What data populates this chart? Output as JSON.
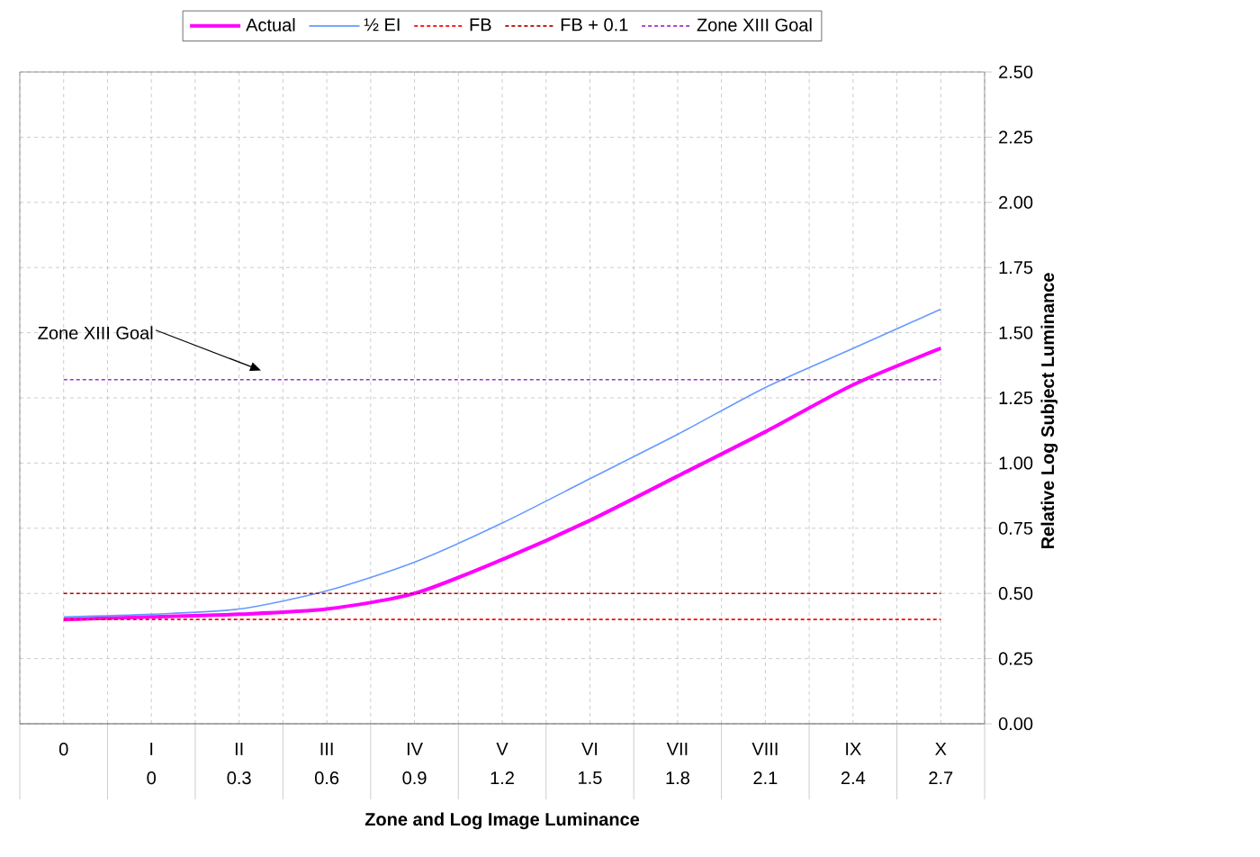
{
  "chart_data": {
    "type": "line",
    "xlabel": "Zone and Log Image Luminance",
    "ylabel": "Relative Log Subject Luminance",
    "categories": [
      "0",
      "I",
      "II",
      "III",
      "IV",
      "V",
      "VI",
      "VII",
      "VIII",
      "IX",
      "X"
    ],
    "x2lim": [
      -0.45,
      2.85
    ],
    "x2ticks": [
      0,
      0.3,
      0.6,
      0.9,
      1.2,
      1.5,
      1.8,
      2.1,
      2.4,
      2.7
    ],
    "series": [
      {
        "name": "Actual",
        "color": "#ff00ff",
        "values": [
          0.4,
          0.41,
          0.42,
          0.44,
          0.5,
          0.63,
          0.78,
          0.95,
          1.12,
          1.3,
          1.44
        ]
      },
      {
        "name": "½ EI",
        "color": "#6699ff",
        "values": [
          0.41,
          0.42,
          0.44,
          0.51,
          0.62,
          0.77,
          0.94,
          1.11,
          1.29,
          1.44,
          1.59
        ]
      }
    ],
    "ref_lines": [
      {
        "axis": "y",
        "value": 0.4,
        "label": "FB",
        "color": "#ff0000",
        "line_style": "dashed"
      },
      {
        "axis": "y",
        "value": 0.5,
        "label": "FB + 0.1",
        "color": "#c00000",
        "line_style": "dashed"
      },
      {
        "axis": "y",
        "value": 1.32,
        "label": "Zone XIII Goal",
        "color": "#9933cc",
        "line_style": "dashed"
      }
    ],
    "annotations": [
      {
        "text": "Zone XIII Goal",
        "y": 1.32
      }
    ],
    "ylim": [
      0,
      2.5
    ],
    "yticks": [
      {
        "value": 0,
        "label": "0.00"
      },
      0.25,
      {
        "value": 0.5,
        "label": "0.50"
      },
      0.75,
      {
        "value": 1,
        "label": "1.00"
      },
      1.25,
      {
        "value": 1.5,
        "label": "1.50"
      },
      1.75,
      {
        "value": 2,
        "label": "2.00"
      },
      2.25,
      {
        "value": 2.5,
        "label": "2.50"
      }
    ],
    "grid": true,
    "legend": "top",
    "line_style": "solid"
  }
}
